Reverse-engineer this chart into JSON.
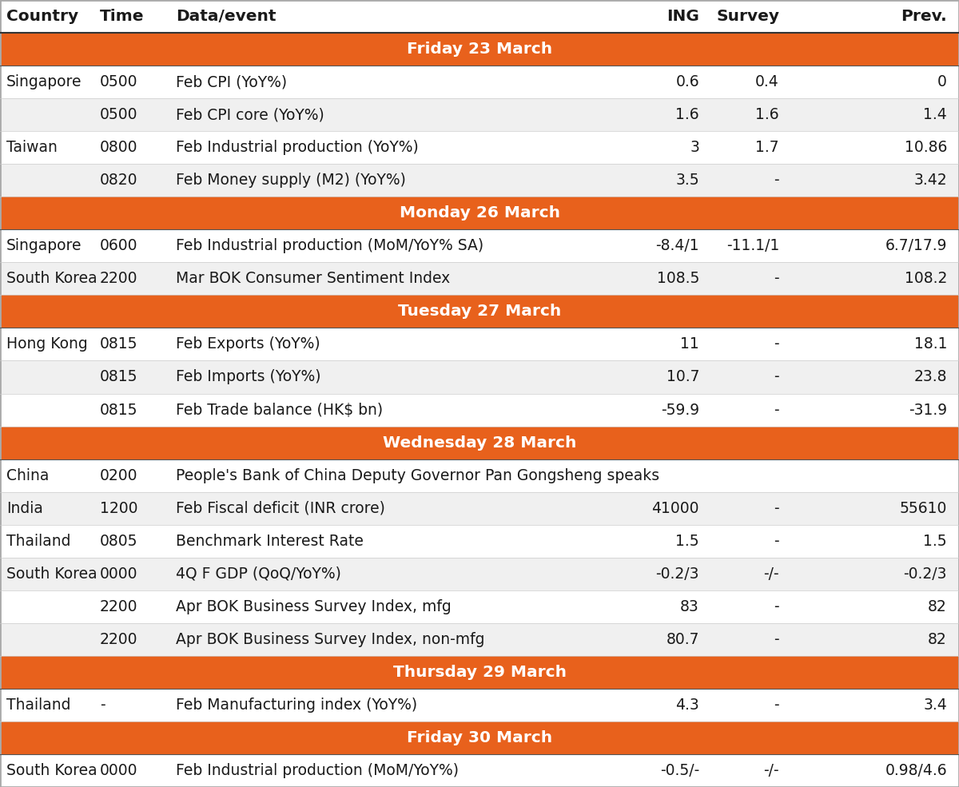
{
  "header": [
    "Country",
    "Time",
    "Data/event",
    "ING",
    "Survey",
    "Prev."
  ],
  "orange_color": "#E8611C",
  "row_colors": [
    "#FFFFFF",
    "#F0F0F0"
  ],
  "sections": [
    {
      "type": "day_header",
      "label": "Friday 23 March"
    },
    {
      "type": "data",
      "country": "Singapore",
      "time": "0500",
      "event": "Feb CPI (YoY%)",
      "ing": "0.6",
      "survey": "0.4",
      "prev": "0"
    },
    {
      "type": "data",
      "country": "",
      "time": "0500",
      "event": "Feb CPI core (YoY%)",
      "ing": "1.6",
      "survey": "1.6",
      "prev": "1.4"
    },
    {
      "type": "data",
      "country": "Taiwan",
      "time": "0800",
      "event": "Feb Industrial production (YoY%)",
      "ing": "3",
      "survey": "1.7",
      "prev": "10.86"
    },
    {
      "type": "data",
      "country": "",
      "time": "0820",
      "event": "Feb Money supply (M2) (YoY%)",
      "ing": "3.5",
      "survey": "-",
      "prev": "3.42"
    },
    {
      "type": "day_header",
      "label": "Monday 26 March"
    },
    {
      "type": "data",
      "country": "Singapore",
      "time": "0600",
      "event": "Feb Industrial production (MoM/YoY% SA)",
      "ing": "-8.4/1",
      "survey": "-11.1/1",
      "prev": "6.7/17.9"
    },
    {
      "type": "data",
      "country": "South Korea",
      "time": "2200",
      "event": "Mar BOK Consumer Sentiment Index",
      "ing": "108.5",
      "survey": "-",
      "prev": "108.2"
    },
    {
      "type": "day_header",
      "label": "Tuesday 27 March"
    },
    {
      "type": "data",
      "country": "Hong Kong",
      "time": "0815",
      "event": "Feb Exports (YoY%)",
      "ing": "11",
      "survey": "-",
      "prev": "18.1"
    },
    {
      "type": "data",
      "country": "",
      "time": "0815",
      "event": "Feb Imports (YoY%)",
      "ing": "10.7",
      "survey": "-",
      "prev": "23.8"
    },
    {
      "type": "data",
      "country": "",
      "time": "0815",
      "event": "Feb Trade balance (HK$ bn)",
      "ing": "-59.9",
      "survey": "-",
      "prev": "-31.9"
    },
    {
      "type": "day_header",
      "label": "Wednesday 28 March"
    },
    {
      "type": "data",
      "country": "China",
      "time": "0200",
      "event": "People's Bank of China Deputy Governor Pan Gongsheng speaks",
      "ing": "",
      "survey": "",
      "prev": ""
    },
    {
      "type": "data",
      "country": "India",
      "time": "1200",
      "event": "Feb Fiscal deficit (INR crore)",
      "ing": "41000",
      "survey": "-",
      "prev": "55610"
    },
    {
      "type": "data",
      "country": "Thailand",
      "time": "0805",
      "event": "Benchmark Interest Rate",
      "ing": "1.5",
      "survey": "-",
      "prev": "1.5"
    },
    {
      "type": "data",
      "country": "South Korea",
      "time": "0000",
      "event": "4Q F GDP (QoQ/YoY%)",
      "ing": "-0.2/3",
      "survey": "-/-",
      "prev": "-0.2/3"
    },
    {
      "type": "data",
      "country": "",
      "time": "2200",
      "event": "Apr BOK Business Survey Index, mfg",
      "ing": "83",
      "survey": "-",
      "prev": "82"
    },
    {
      "type": "data",
      "country": "",
      "time": "2200",
      "event": "Apr BOK Business Survey Index, non-mfg",
      "ing": "80.7",
      "survey": "-",
      "prev": "82"
    },
    {
      "type": "day_header",
      "label": "Thursday 29 March"
    },
    {
      "type": "data",
      "country": "Thailand",
      "time": "-",
      "event": "Feb Manufacturing index (YoY%)",
      "ing": "4.3",
      "survey": "-",
      "prev": "3.4"
    },
    {
      "type": "day_header",
      "label": "Friday 30 March"
    },
    {
      "type": "data",
      "country": "South Korea",
      "time": "0000",
      "event": "Feb Industrial production (MoM/YoY%)",
      "ing": "-0.5/-",
      "survey": "-/-",
      "prev": "0.98/4.6"
    }
  ],
  "font_size": 13.5,
  "header_font_size": 14.5,
  "day_font_size": 14.5
}
